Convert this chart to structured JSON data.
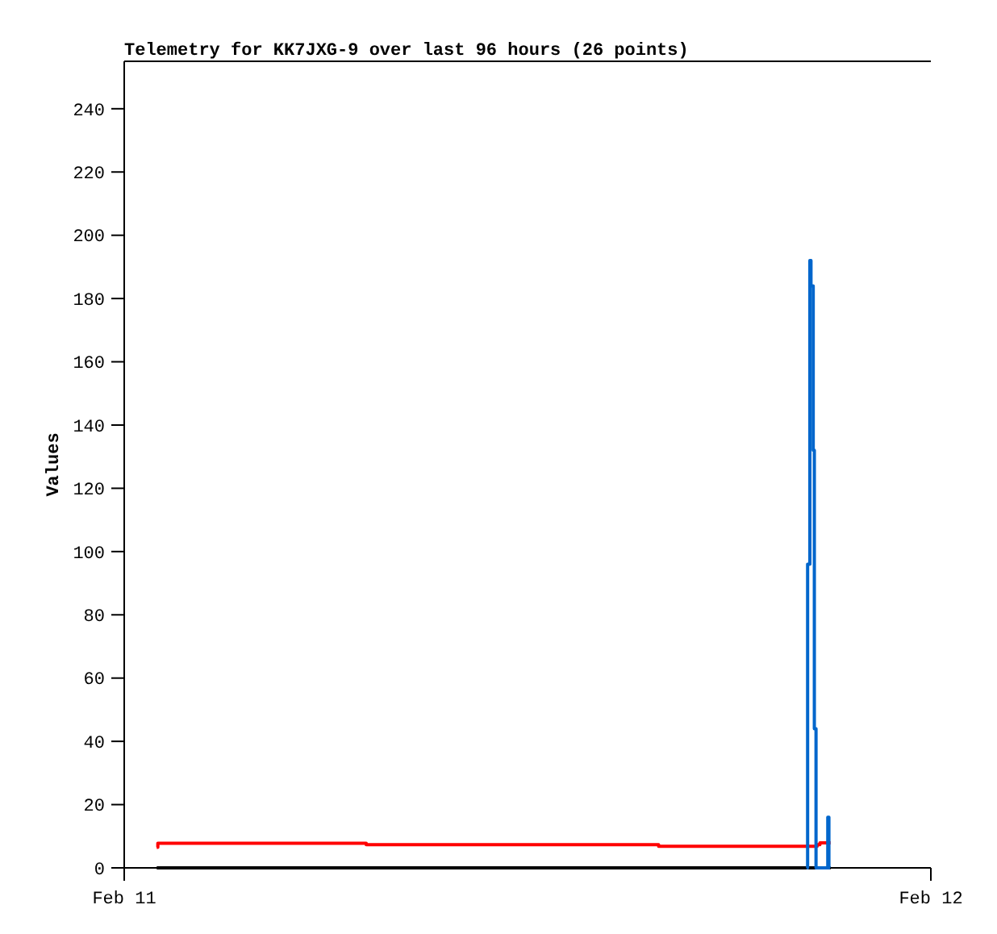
{
  "chart_data": {
    "type": "step",
    "title": "Telemetry for KK7JXG-9 over last 96 hours (26 points)",
    "ylabel": "Values",
    "xlim": [
      "--02-11",
      "--02-12"
    ],
    "xticks": [
      {
        "value": "--02-11",
        "label": "Feb 11"
      },
      {
        "value": "--02-12",
        "label": "Feb 12"
      }
    ],
    "ylim": [
      0,
      255
    ],
    "yticks": [
      0,
      20,
      40,
      60,
      80,
      100,
      120,
      140,
      160,
      180,
      200,
      220,
      240
    ],
    "grid": false,
    "series": [
      {
        "color": "#ff0000",
        "x": [
          "--02-11T00:58",
          "--02-11T01:00",
          "--02-11T07:12",
          "--02-11T15:54",
          "--02-11T20:37",
          "--02-11T20:42",
          "--02-11T21:01"
        ],
        "values": [
          6.5,
          7.8,
          7.3,
          6.8,
          7.3,
          7.9,
          7.9
        ]
      },
      {
        "color": "#000000",
        "x": [
          "--02-11T00:58",
          "--02-11T21:01"
        ],
        "values": [
          0,
          0
        ]
      },
      {
        "color": "#0066cc",
        "x": [
          "--02-11T20:18",
          "--02-11T20:20",
          "--02-11T20:24",
          "--02-11T20:26",
          "--02-11T20:30",
          "--02-11T20:32",
          "--02-11T20:35",
          "--02-11T20:56",
          "--02-11T20:58",
          "--02-11T21:00"
        ],
        "values": [
          0,
          96,
          192,
          184,
          132,
          44,
          0,
          16,
          0,
          0
        ]
      }
    ]
  }
}
